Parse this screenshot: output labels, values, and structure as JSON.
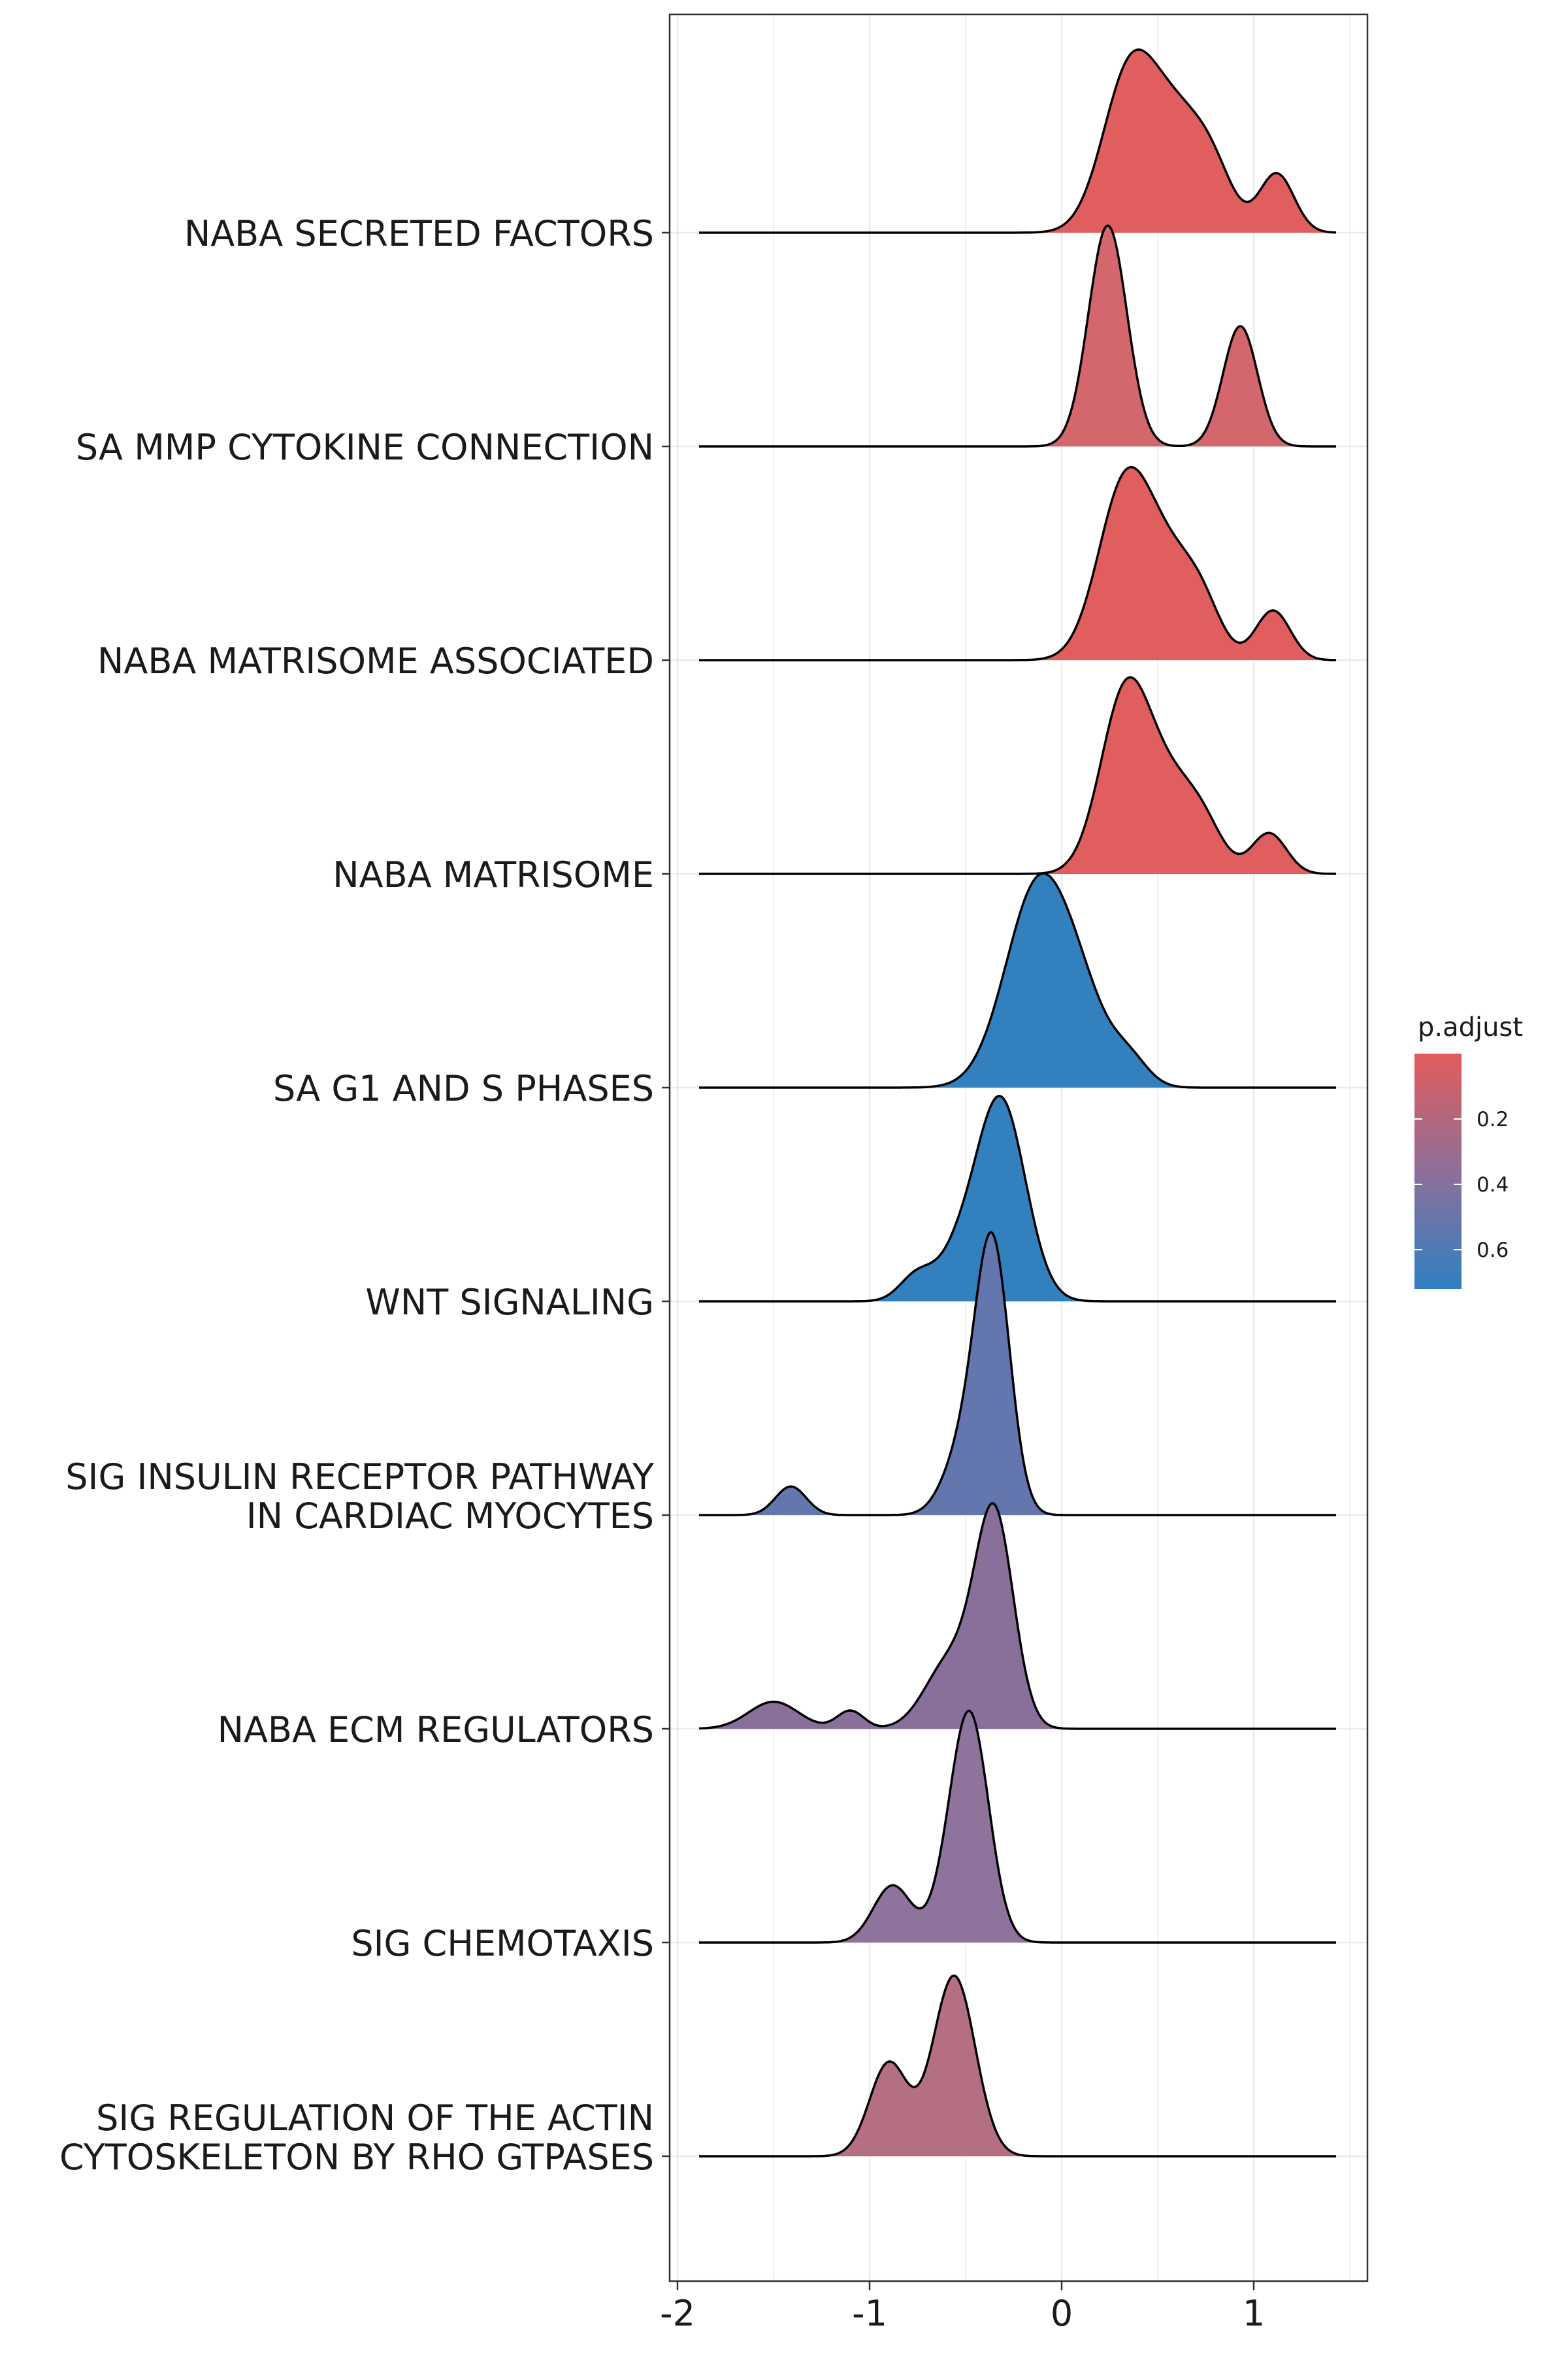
{
  "chart_data": {
    "type": "ridgeline",
    "title": "",
    "xlabel": "",
    "ylabel": "",
    "xlim": [
      -2,
      1.6
    ],
    "x_ticks": [
      "-2",
      "-1",
      "0",
      "1"
    ],
    "grid": true,
    "legend": {
      "title": "p.adjust",
      "position": "right",
      "ticks": [
        "0.2",
        "0.4",
        "0.6"
      ],
      "colors": {
        "low": "#e15c5c",
        "mid": "#8e6f9a",
        "high": "#2f7fc1"
      }
    },
    "series": [
      {
        "lines": [
          "NABA SECRETED FACTORS"
        ],
        "fill": "#e15e5e",
        "peaks": [
          [
            0.35,
            1.0,
            0.14
          ],
          [
            0.62,
            0.72,
            0.16
          ],
          [
            0.8,
            0.18,
            0.1
          ],
          [
            1.12,
            0.39,
            0.09
          ]
        ]
      },
      {
        "lines": [
          "SA MMP CYTOKINE CONNECTION"
        ],
        "fill": "#d4676e",
        "peaks": [
          [
            0.24,
            1.47,
            0.1
          ],
          [
            0.93,
            0.8,
            0.09
          ]
        ]
      },
      {
        "lines": [
          "NABA MATRISOME ASSOCIATED"
        ],
        "fill": "#e15e5e",
        "peaks": [
          [
            0.33,
            1.15,
            0.14
          ],
          [
            0.58,
            0.55,
            0.14
          ],
          [
            0.74,
            0.22,
            0.1
          ],
          [
            1.1,
            0.33,
            0.09
          ]
        ]
      },
      {
        "lines": [
          "NABA MATRISOME"
        ],
        "fill": "#e15e5e",
        "peaks": [
          [
            0.33,
            1.15,
            0.13
          ],
          [
            0.58,
            0.55,
            0.15
          ],
          [
            0.75,
            0.15,
            0.1
          ],
          [
            1.08,
            0.27,
            0.09
          ]
        ]
      },
      {
        "lines": [
          "SA G1 AND S PHASES"
        ],
        "fill": "#3380bf",
        "peaks": [
          [
            -0.12,
            1.35,
            0.17
          ],
          [
            0.12,
            0.35,
            0.13
          ],
          [
            0.35,
            0.18,
            0.1
          ]
        ]
      },
      {
        "lines": [
          "WNT SIGNALING"
        ],
        "fill": "#3380bf",
        "peaks": [
          [
            -0.32,
            1.35,
            0.13
          ],
          [
            -0.55,
            0.22,
            0.1
          ],
          [
            -0.75,
            0.18,
            0.09
          ]
        ]
      },
      {
        "lines": [
          "SIG INSULIN RECEPTOR PATHWAY",
          "IN CARDIAC MYOCYTES"
        ],
        "fill": "#6376ad",
        "peaks": [
          [
            -0.36,
            1.77,
            0.09
          ],
          [
            -0.52,
            0.38,
            0.1
          ],
          [
            -1.41,
            0.19,
            0.08
          ]
        ]
      },
      {
        "lines": [
          "NABA ECM REGULATORS"
        ],
        "fill": "#89709a",
        "peaks": [
          [
            -0.35,
            1.4,
            0.1
          ],
          [
            -0.58,
            0.45,
            0.13
          ],
          [
            -1.5,
            0.18,
            0.13
          ],
          [
            -1.1,
            0.12,
            0.07
          ]
        ]
      },
      {
        "lines": [
          "SIG CHEMOTAXIS"
        ],
        "fill": "#8e739c",
        "peaks": [
          [
            -0.48,
            1.52,
            0.1
          ],
          [
            -0.88,
            0.38,
            0.1
          ],
          [
            -0.62,
            0.1,
            0.08
          ]
        ]
      },
      {
        "lines": [
          "SIG REGULATION OF THE ACTIN",
          "CYTOSKELETON BY RHO GTPASES"
        ],
        "fill": "#b56f82",
        "peaks": [
          [
            -0.56,
            1.2,
            0.11
          ],
          [
            -0.9,
            0.62,
            0.1
          ]
        ]
      }
    ]
  }
}
